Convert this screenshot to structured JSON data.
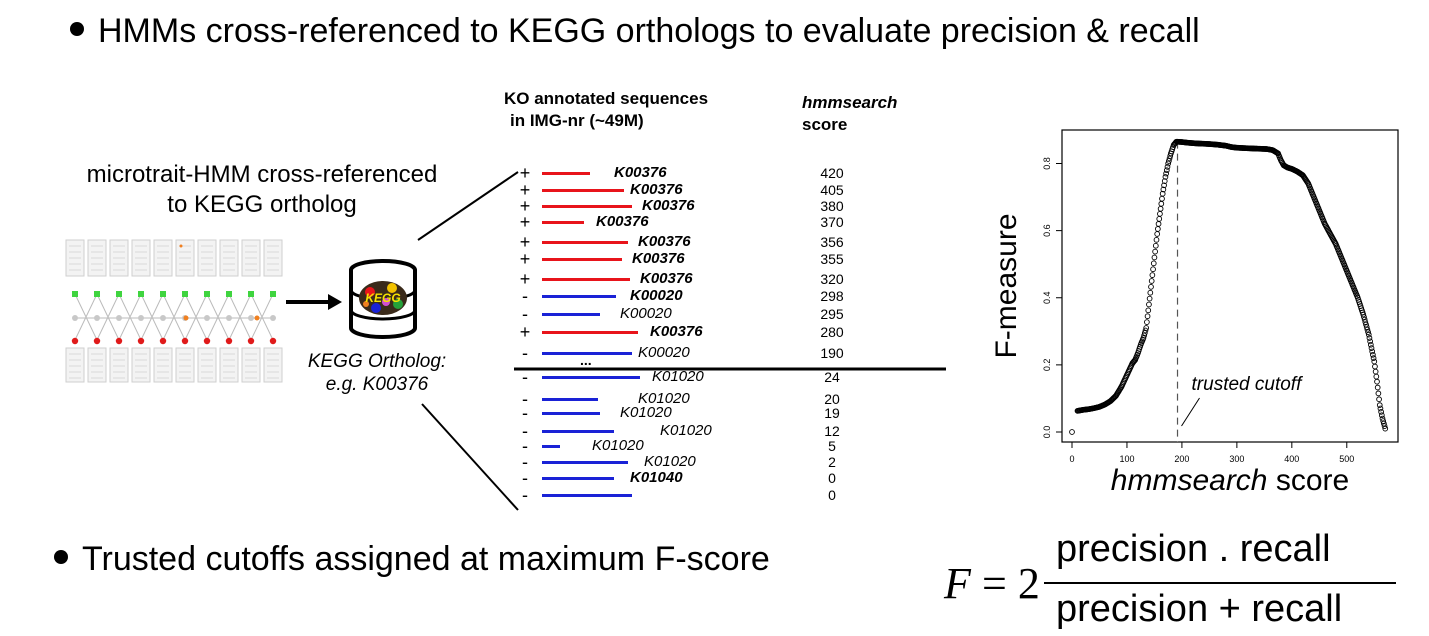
{
  "bullets": {
    "top": "HMMs cross-referenced to KEGG orthologs to evaluate precision & recall",
    "bottom": "Trusted cutoffs assigned at maximum F-score"
  },
  "left_panel": {
    "title_line1": "microtrait-HMM cross-referenced",
    "title_line2": "to KEGG ortholog",
    "db_caption_line1": "KEGG Ortholog:",
    "db_caption_line2": "e.g. K00376",
    "db_logo_text": "KEGG"
  },
  "table": {
    "header_left_line1": "KO annotated sequences",
    "header_left_line2": "in IMG-nr (~49M)",
    "header_right_line1": "hmmsearch",
    "header_right_line2": "score",
    "ellipsis": "...",
    "rows": [
      {
        "sign": "+",
        "ko": "K00376",
        "bold": true,
        "score": "420",
        "color": "#e8141b"
      },
      {
        "sign": "+",
        "ko": "K00376",
        "bold": true,
        "score": "405",
        "color": "#e8141b"
      },
      {
        "sign": "+",
        "ko": "K00376",
        "bold": true,
        "score": "380",
        "color": "#e8141b"
      },
      {
        "sign": "+",
        "ko": "K00376",
        "bold": true,
        "score": "370",
        "color": "#e8141b"
      },
      {
        "sign": "+",
        "ko": "K00376",
        "bold": true,
        "score": "356",
        "color": "#e8141b"
      },
      {
        "sign": "+",
        "ko": "K00376",
        "bold": true,
        "score": "355",
        "color": "#e8141b"
      },
      {
        "sign": "+",
        "ko": "K00376",
        "bold": true,
        "score": "320",
        "color": "#e8141b"
      },
      {
        "sign": "-",
        "ko": "K00020",
        "bold": true,
        "score": "298",
        "color": "#1a22d6"
      },
      {
        "sign": "-",
        "ko": "K00020",
        "bold": false,
        "score": "295",
        "color": "#1a22d6"
      },
      {
        "sign": "+",
        "ko": "K00376",
        "bold": true,
        "score": "280",
        "color": "#e8141b"
      },
      {
        "sign": "-",
        "ko": "K00020",
        "bold": false,
        "score": "190",
        "color": "#1a22d6"
      },
      {
        "sign": "-",
        "ko": "K01020",
        "bold": false,
        "score": "24",
        "color": "#1a22d6"
      },
      {
        "sign": "-",
        "ko": "K01020",
        "bold": false,
        "score": "20",
        "color": "#1a22d6"
      },
      {
        "sign": "-",
        "ko": "K01020",
        "bold": false,
        "score": "19",
        "color": "#1a22d6"
      },
      {
        "sign": "-",
        "ko": "K01020",
        "bold": false,
        "score": "12",
        "color": "#1a22d6"
      },
      {
        "sign": "-",
        "ko": "K01020",
        "bold": false,
        "score": "5",
        "color": "#1a22d6"
      },
      {
        "sign": "-",
        "ko": "K01020",
        "bold": false,
        "score": "2",
        "color": "#1a22d6"
      },
      {
        "sign": "-",
        "ko": "K01040",
        "bold": true,
        "score": "0",
        "color": "#1a22d6"
      },
      {
        "sign": "-",
        "ko": "",
        "bold": false,
        "score": "0",
        "color": "#1a22d6"
      }
    ]
  },
  "chart_data": {
    "type": "scatter",
    "title": "",
    "xlabel_italic": "hmmsearch",
    "xlabel_rest": " score",
    "ylabel": "F-measure",
    "xlim": [
      0,
      575
    ],
    "ylim": [
      0,
      0.87
    ],
    "xticks": [
      "0",
      "100",
      "200",
      "300",
      "400",
      "500"
    ],
    "yticks": [
      "0.0",
      "0.2",
      "0.4",
      "0.6",
      "0.8"
    ],
    "cutoff": 192,
    "annotation": "trusted cutoff",
    "points": [
      [
        0,
        0.0
      ],
      [
        10,
        0.063
      ],
      [
        20,
        0.066
      ],
      [
        30,
        0.068
      ],
      [
        40,
        0.071
      ],
      [
        50,
        0.075
      ],
      [
        60,
        0.082
      ],
      [
        70,
        0.092
      ],
      [
        80,
        0.108
      ],
      [
        90,
        0.135
      ],
      [
        100,
        0.17
      ],
      [
        110,
        0.205
      ],
      [
        115,
        0.215
      ],
      [
        120,
        0.235
      ],
      [
        125,
        0.26
      ],
      [
        130,
        0.28
      ],
      [
        135,
        0.31
      ],
      [
        140,
        0.38
      ],
      [
        145,
        0.45
      ],
      [
        150,
        0.52
      ],
      [
        155,
        0.59
      ],
      [
        160,
        0.65
      ],
      [
        165,
        0.71
      ],
      [
        170,
        0.76
      ],
      [
        175,
        0.8
      ],
      [
        180,
        0.83
      ],
      [
        185,
        0.855
      ],
      [
        190,
        0.865
      ],
      [
        200,
        0.864
      ],
      [
        210,
        0.862
      ],
      [
        225,
        0.86
      ],
      [
        250,
        0.858
      ],
      [
        265,
        0.856
      ],
      [
        280,
        0.853
      ],
      [
        290,
        0.849
      ],
      [
        300,
        0.847
      ],
      [
        312,
        0.846
      ],
      [
        325,
        0.845
      ],
      [
        340,
        0.844
      ],
      [
        355,
        0.843
      ],
      [
        365,
        0.84
      ],
      [
        375,
        0.83
      ],
      [
        380,
        0.81
      ],
      [
        385,
        0.795
      ],
      [
        392,
        0.788
      ],
      [
        400,
        0.784
      ],
      [
        410,
        0.776
      ],
      [
        420,
        0.765
      ],
      [
        430,
        0.74
      ],
      [
        440,
        0.7
      ],
      [
        450,
        0.66
      ],
      [
        460,
        0.62
      ],
      [
        470,
        0.59
      ],
      [
        480,
        0.56
      ],
      [
        490,
        0.52
      ],
      [
        500,
        0.48
      ],
      [
        510,
        0.44
      ],
      [
        520,
        0.4
      ],
      [
        530,
        0.35
      ],
      [
        540,
        0.29
      ],
      [
        550,
        0.21
      ],
      [
        555,
        0.15
      ],
      [
        560,
        0.08
      ],
      [
        565,
        0.04
      ],
      [
        570,
        0.01
      ]
    ]
  },
  "formula": {
    "lhs": "F",
    "eq": "= 2",
    "numerator": "precision . recall",
    "denominator": "precision + recall"
  }
}
